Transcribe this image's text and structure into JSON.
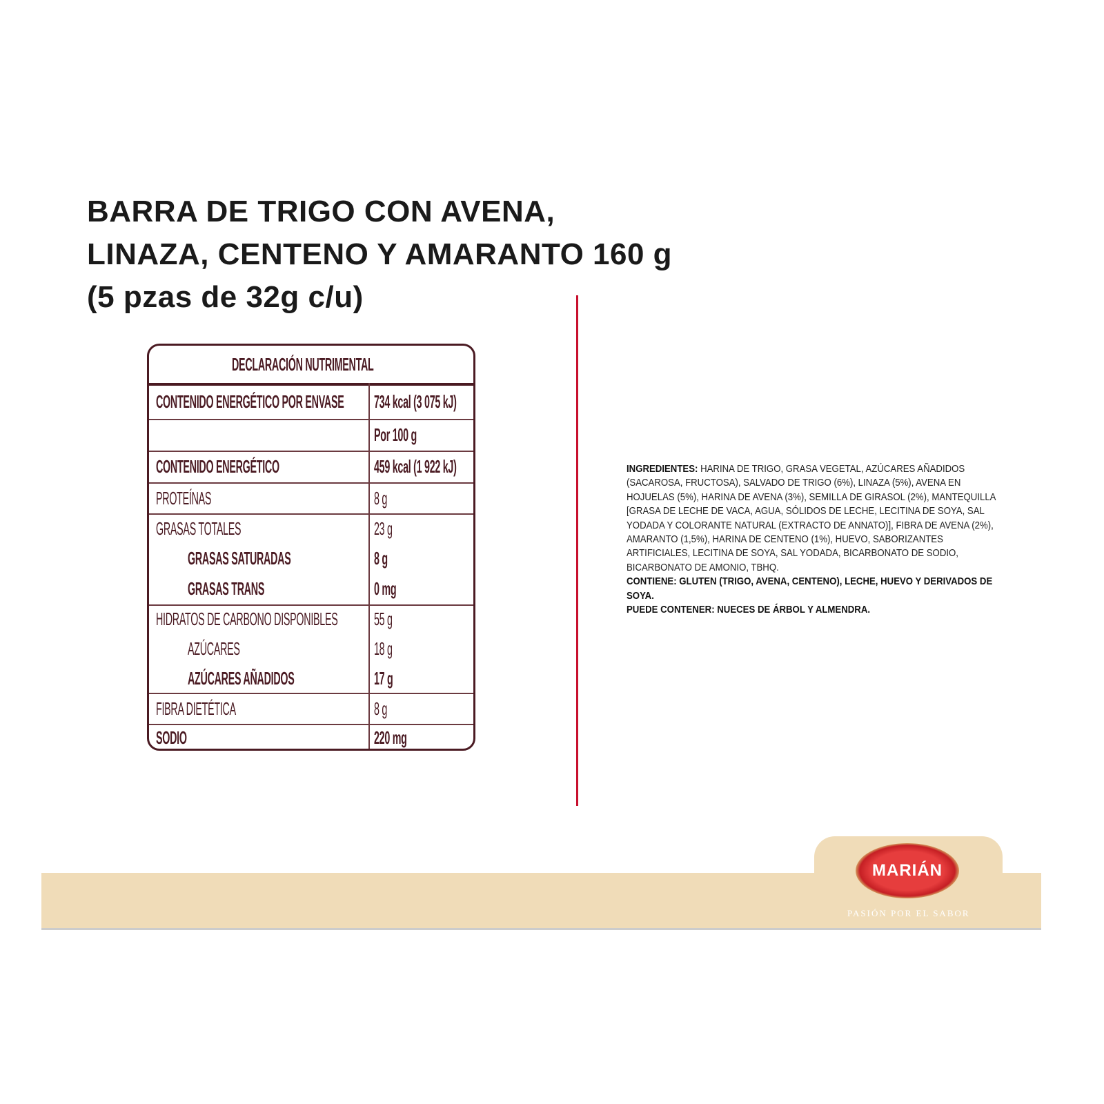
{
  "product": {
    "title": "BARRA DE TRIGO CON AVENA,\nLINAZA, CENTENO Y AMARANTO 160 g\n(5 pzas de 32g c/u)"
  },
  "nutrition": {
    "heading": "DECLARACIÓN NUTRIMENTAL",
    "rows": [
      {
        "label": "CONTENIDO ENERGÉTICO POR ENVASE",
        "value": "734 kcal (3 075 kJ)"
      },
      {
        "label": "",
        "value": "Por 100 g"
      },
      {
        "label": "CONTENIDO ENERGÉTICO",
        "value": "459 kcal (1 922 kJ)"
      },
      {
        "label": "PROTEÍNAS",
        "value": "8 g"
      },
      {
        "label": "GRASAS TOTALES",
        "value": "23 g"
      },
      {
        "label": "GRASAS SATURADAS",
        "value": "8 g"
      },
      {
        "label": "GRASAS TRANS",
        "value": "0 mg"
      },
      {
        "label": "HIDRATOS DE CARBONO DISPONIBLES",
        "value": "55 g"
      },
      {
        "label": "AZÚCARES",
        "value": "18 g"
      },
      {
        "label": "AZÚCARES AÑADIDOS",
        "value": "17 g"
      },
      {
        "label": "FIBRA DIETÉTICA",
        "value": "8 g"
      },
      {
        "label": "SODIO",
        "value": "220 mg"
      }
    ]
  },
  "ingredients": {
    "label": "INGREDIENTES:",
    "text": " HARINA DE TRIGO, GRASA VEGETAL, AZÚCARES AÑADIDOS (SACAROSA, FRUCTOSA), SALVADO DE TRIGO (6%), LINAZA (5%), AVENA EN HOJUELAS (5%), HARINA DE AVENA (3%), SEMILLA DE GIRASOL (2%), MANTEQUILLA [GRASA DE LECHE DE VACA, AGUA, SÓLIDOS DE LECHE, LECITINA DE SOYA, SAL YODADA Y COLORANTE NATURAL (EXTRACTO DE ANNATO)], FIBRA DE AVENA (2%), AMARANTO (1,5%), HARINA DE CENTENO (1%), HUEVO, SABORIZANTES ARTIFICIALES, LECITINA DE SOYA, SAL YODADA, BICARBONATO DE SODIO, BICARBONATO DE AMONIO, TBHQ.",
    "contains": "CONTIENE: GLUTEN (TRIGO, AVENA, CENTENO), LECHE, HUEVO Y DERIVADOS DE SOYA.",
    "may_contain": "PUEDE CONTENER: NUECES DE ÁRBOL Y ALMENDRA."
  },
  "brand": {
    "logo": "MARIÁN",
    "slogan": "PASIÓN POR EL SABOR"
  },
  "colors": {
    "table": "#4a1a22",
    "divider": "#c8102e",
    "band": "#f0dcb8"
  }
}
